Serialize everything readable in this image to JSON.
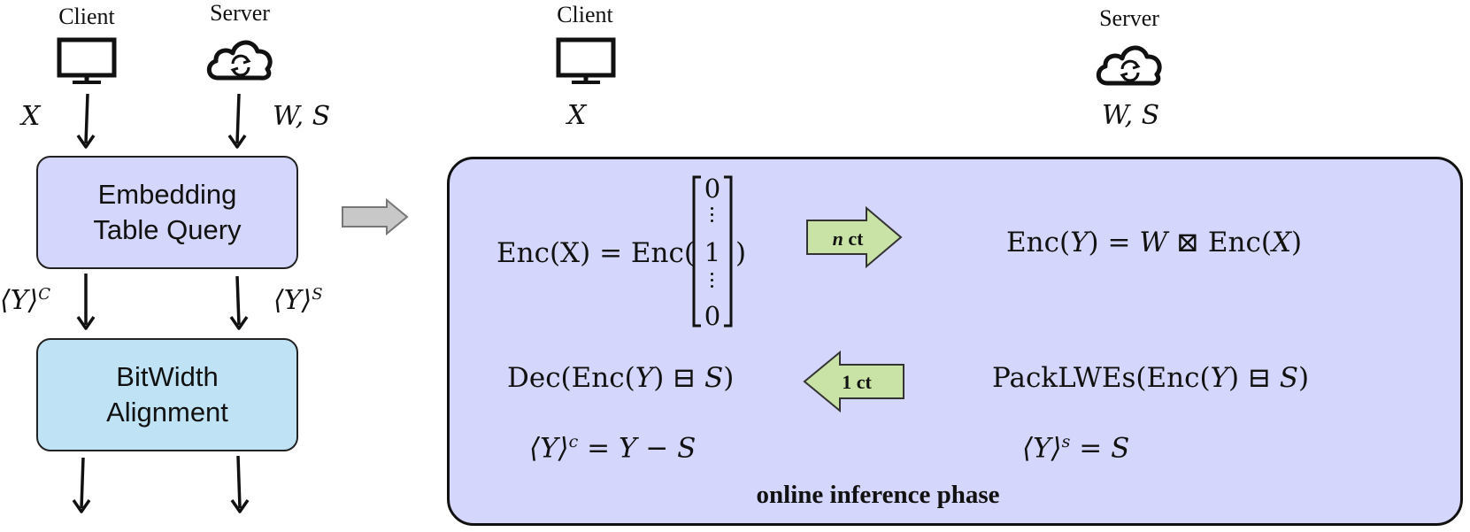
{
  "left": {
    "client_label": "Client",
    "server_label": "Server",
    "client_input": "X",
    "server_input": "W, S",
    "box1_line1": "Embedding",
    "box1_line2": "Table Query",
    "share_client": "⟨Y⟩",
    "share_client_sup": "C",
    "share_server": "⟨Y⟩",
    "share_server_sup": "S",
    "box2_line1": "BitWidth",
    "box2_line2": "Alignment"
  },
  "right": {
    "client_label": "Client",
    "server_label": "Server",
    "client_input": "X",
    "server_input": "W, S",
    "enc_x_prefix": "Enc(X) = Enc(",
    "enc_x_suffix": ")",
    "matrix": [
      "0",
      "1",
      "0"
    ],
    "arrow_forward_n": "n",
    "arrow_forward_rest": " ct",
    "arrow_back_label": "1 ct",
    "enc_y_prefix": "Enc(",
    "enc_y_var": "Y",
    "enc_y_mid": ") = ",
    "enc_y_w": "W",
    "enc_y_op": " ⊠ ",
    "enc_y_enc": "Enc(",
    "enc_y_x": "X",
    "enc_y_close": ")",
    "dec_prefix": "Dec(Enc(",
    "dec_y": "Y",
    "dec_mid": ") ⊟ ",
    "dec_s": "S",
    "dec_close": ")",
    "pack_prefix": "PackLWEs(Enc(",
    "pack_y": "Y",
    "pack_mid": ") ⊟ ",
    "pack_s": "S",
    "pack_close": ")",
    "share_c_lhs": "⟨Y⟩",
    "share_c_sup": "c",
    "share_c_rhs": " = Y − S",
    "share_s_lhs": "⟨Y⟩",
    "share_s_sup": "s",
    "share_s_rhs": " = S",
    "phase_label": "online inference phase"
  },
  "colors": {
    "embedding_box": "#d5d6fb",
    "bitwidth_box": "#bfe3f5",
    "panel": "#d5d6fb",
    "green_arrow": "#c9e2a6",
    "gray_arrow": "#c8c8c8"
  },
  "icons": {
    "client": "monitor-icon",
    "server": "cloud-sync-icon"
  }
}
